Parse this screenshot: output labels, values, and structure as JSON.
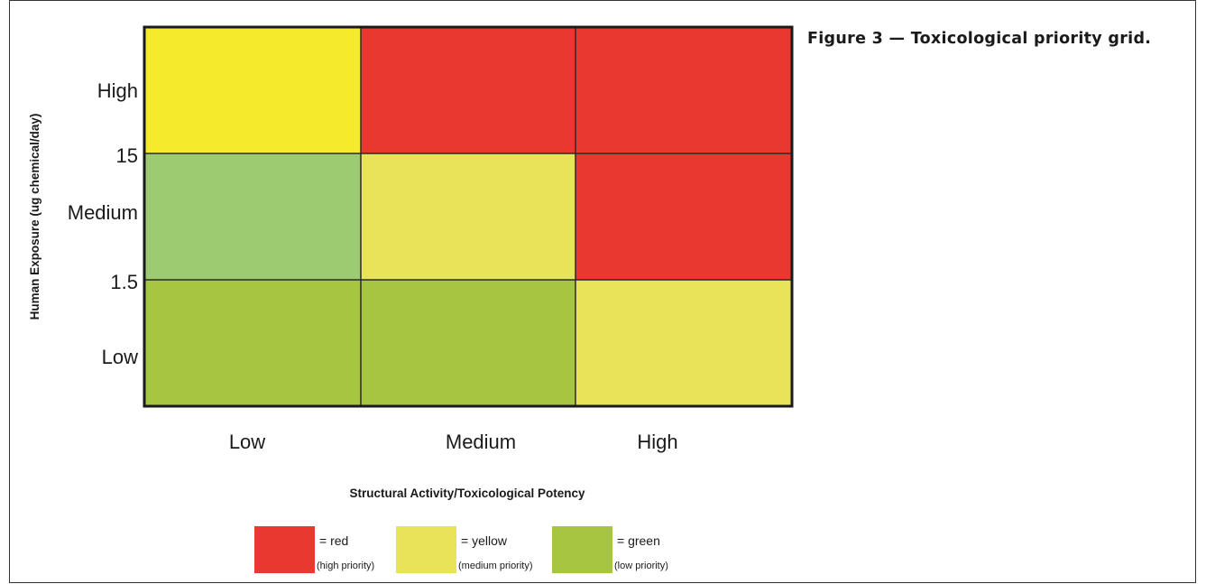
{
  "figure_title": "Figure 3 — Toxicological priority grid.",
  "chart_data": {
    "type": "heatmap",
    "title": "Figure 3 — Toxicological priority grid.",
    "xlabel": "Structural Activity/Toxicological Potency",
    "ylabel": "Human Exposure (ug chemical/day)",
    "x_categories": [
      "Low",
      "Medium",
      "High"
    ],
    "y_categories_top_to_bottom": [
      "High",
      "Medium",
      "Low"
    ],
    "y_thresholds": [
      "15",
      "1.5"
    ],
    "cells": [
      [
        "yellow",
        "red",
        "red"
      ],
      [
        "green_light",
        "yellow",
        "red"
      ],
      [
        "green",
        "green",
        "yellow"
      ]
    ],
    "colors": {
      "red": "#e8382f",
      "yellow": "#e8e45a",
      "yellow_bright": "#f5ea2c",
      "green_light": "#9ccb71",
      "green": "#a6c641"
    },
    "cell_colors_exact": [
      [
        "#f5ea2c",
        "#e8382f",
        "#e8382f"
      ],
      [
        "#9ccb71",
        "#e8e45a",
        "#e8382f"
      ],
      [
        "#a6c641",
        "#a6c641",
        "#e8e45a"
      ]
    ],
    "legend": [
      {
        "color": "#e8382f",
        "label": "= red",
        "sublabel": "(high priority)"
      },
      {
        "color": "#e8e45a",
        "label": "= yellow",
        "sublabel": "(medium priority)"
      },
      {
        "color": "#a6c641",
        "label": "= green",
        "sublabel": "(low priority)"
      }
    ],
    "legend_placement": "bottom-center",
    "grid": true
  }
}
